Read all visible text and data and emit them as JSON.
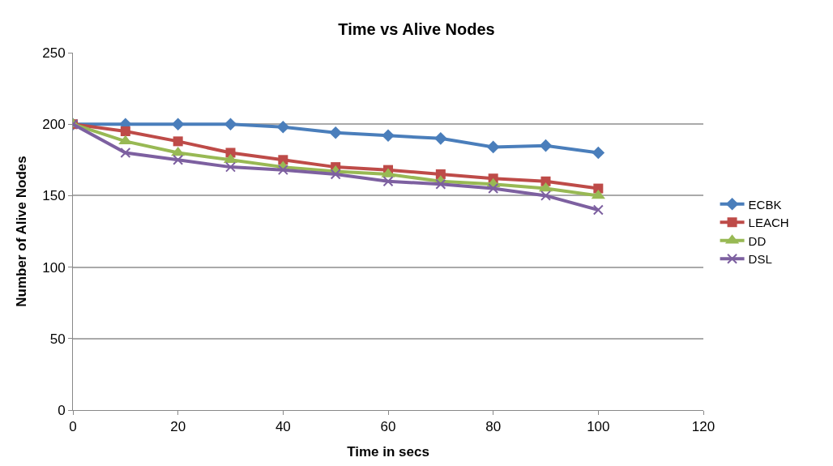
{
  "chart_data": {
    "type": "line",
    "title": "Time vs Alive Nodes",
    "xlabel": "Time in secs",
    "ylabel": "Number of Alive Nodes",
    "x": [
      0,
      10,
      20,
      30,
      40,
      50,
      60,
      70,
      80,
      90,
      100
    ],
    "series": [
      {
        "name": "ECBK",
        "color": "#4a7ebb",
        "marker": "diamond",
        "values": [
          200,
          200,
          200,
          200,
          198,
          194,
          192,
          190,
          184,
          185,
          180
        ]
      },
      {
        "name": "LEACH",
        "color": "#be4b48",
        "marker": "square",
        "values": [
          200,
          195,
          188,
          180,
          175,
          170,
          168,
          165,
          162,
          160,
          155
        ]
      },
      {
        "name": "DD",
        "color": "#98b954",
        "marker": "triangle",
        "values": [
          200,
          188,
          180,
          175,
          170,
          167,
          165,
          160,
          158,
          155,
          150
        ]
      },
      {
        "name": "DSL",
        "color": "#7d60a0",
        "marker": "cross",
        "values": [
          200,
          180,
          175,
          170,
          168,
          165,
          160,
          158,
          155,
          150,
          140
        ]
      }
    ],
    "xlim": [
      0,
      120
    ],
    "xticks": [
      0,
      20,
      40,
      60,
      80,
      100,
      120
    ],
    "ylim": [
      0,
      250
    ],
    "yticks": [
      0,
      50,
      100,
      150,
      200,
      250
    ],
    "grid": "y",
    "legend": "right",
    "line_style": "solid"
  }
}
